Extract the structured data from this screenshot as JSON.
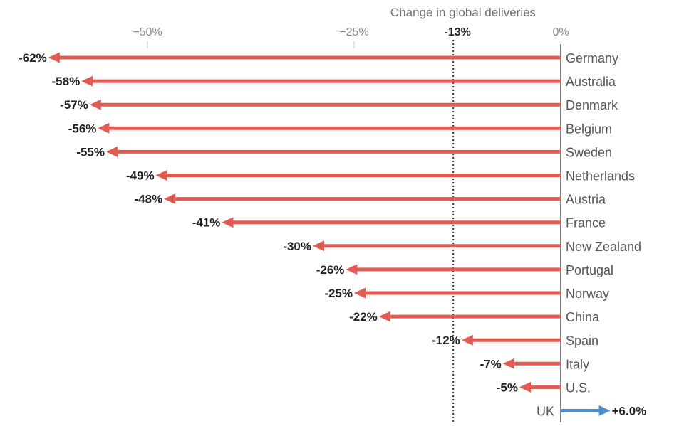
{
  "chart_data": {
    "type": "bar",
    "title": "",
    "xlabel": "Change in global deliveries",
    "ylabel": "",
    "xlim": [
      -62,
      8
    ],
    "ticks": [
      {
        "value": -50,
        "label": "−50%"
      },
      {
        "value": -25,
        "label": "−25%"
      },
      {
        "value": 0,
        "label": "0%"
      }
    ],
    "reference_line": {
      "value": -13,
      "label": "-13%",
      "style": "dotted"
    },
    "negative_color": "#e25b52",
    "positive_color": "#4a90d0",
    "categories": [
      "Germany",
      "Australia",
      "Denmark",
      "Belgium",
      "Sweden",
      "Netherlands",
      "Austria",
      "France",
      "New Zealand",
      "Portugal",
      "Norway",
      "China",
      "Spain",
      "Italy",
      "U.S.",
      "UK"
    ],
    "values": [
      -62,
      -58,
      -57,
      -56,
      -55,
      -49,
      -48,
      -41,
      -30,
      -26,
      -25,
      -22,
      -12,
      -7,
      -5,
      6.0
    ],
    "value_labels": [
      "-62%",
      "-58%",
      "-57%",
      "-56%",
      "-55%",
      "-49%",
      "-48%",
      "-41%",
      "-30%",
      "-26%",
      "-25%",
      "-22%",
      "-12%",
      "-7%",
      "-5%",
      "+6.0%"
    ]
  }
}
